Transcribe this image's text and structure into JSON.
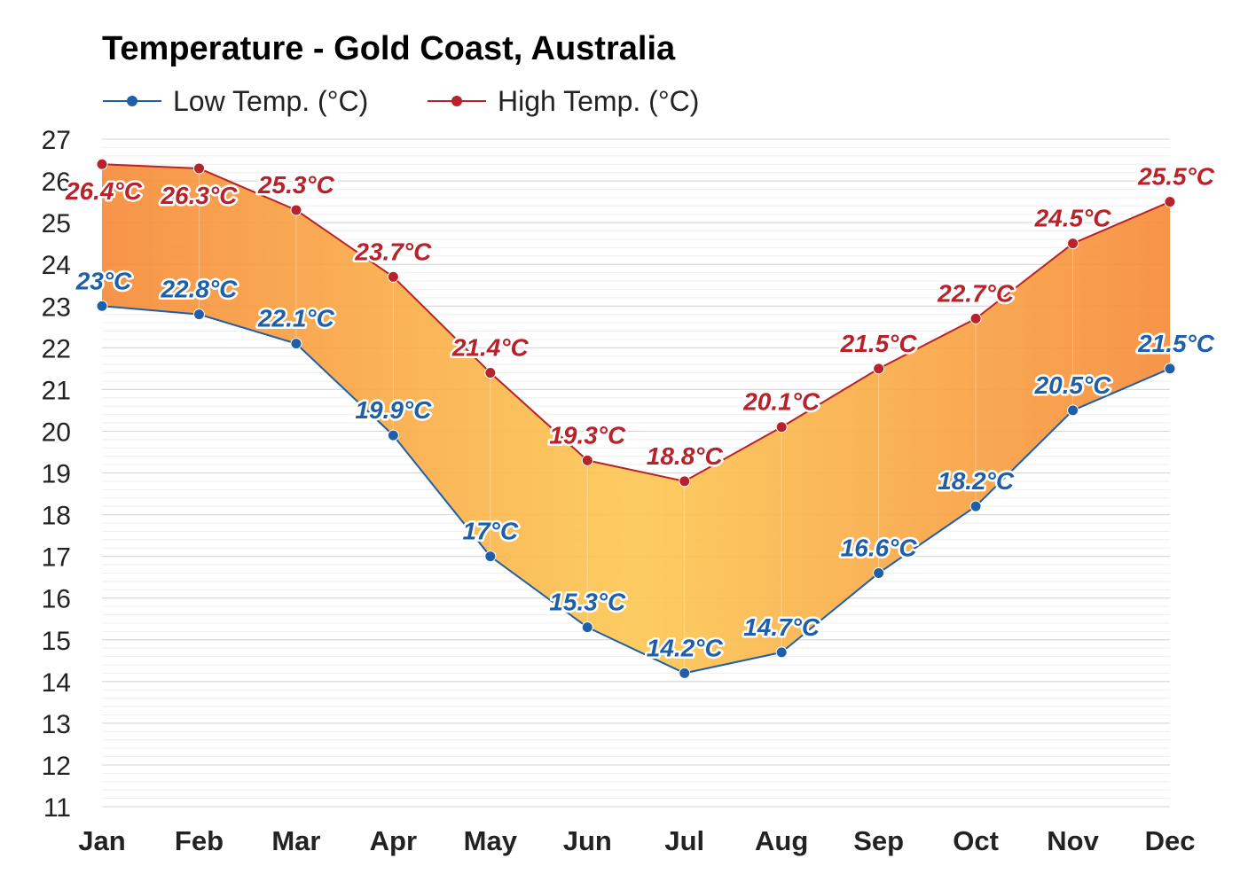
{
  "chart_data": {
    "type": "line",
    "title": "Temperature - Gold Coast, Australia",
    "categories": [
      "Jan",
      "Feb",
      "Mar",
      "Apr",
      "May",
      "Jun",
      "Jul",
      "Aug",
      "Sep",
      "Oct",
      "Nov",
      "Dec"
    ],
    "series": [
      {
        "name": "Low Temp. (°C)",
        "color": "#1f5fa8",
        "values": [
          23,
          22.8,
          22.1,
          19.9,
          17,
          15.3,
          14.2,
          14.7,
          16.6,
          18.2,
          20.5,
          21.5
        ],
        "labels": [
          "23°C",
          "22.8°C",
          "22.1°C",
          "19.9°C",
          "17°C",
          "15.3°C",
          "14.2°C",
          "14.7°C",
          "16.6°C",
          "18.2°C",
          "20.5°C",
          "21.5°C"
        ]
      },
      {
        "name": "High Temp. (°C)",
        "color": "#b8222a",
        "values": [
          26.4,
          26.3,
          25.3,
          23.7,
          21.4,
          19.3,
          18.8,
          20.1,
          21.5,
          22.7,
          24.5,
          25.5
        ],
        "labels": [
          "26.4°C",
          "26.3°C",
          "25.3°C",
          "23.7°C",
          "21.4°C",
          "19.3°C",
          "18.8°C",
          "20.1°C",
          "21.5°C",
          "22.7°C",
          "24.5°C",
          "25.5°C"
        ]
      }
    ],
    "yticks": [
      "11",
      "12",
      "13",
      "14",
      "15",
      "16",
      "17",
      "18",
      "19",
      "20",
      "21",
      "22",
      "23",
      "24",
      "25",
      "26",
      "27"
    ],
    "ylim": [
      11,
      27
    ],
    "grid": true,
    "legend": "top-left",
    "fill_colors": [
      "#f68b3a",
      "#fcc855"
    ]
  }
}
